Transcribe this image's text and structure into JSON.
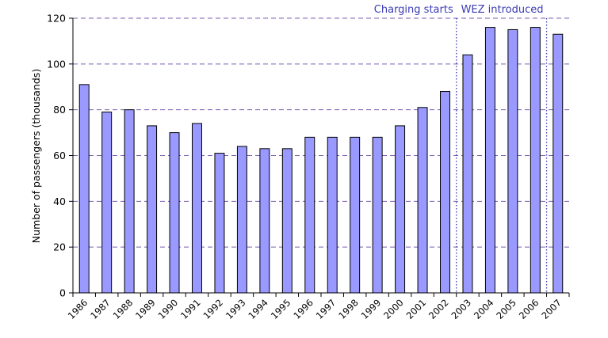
{
  "chart_data": {
    "type": "bar",
    "title": "",
    "xlabel": "",
    "ylabel": "Number of passengers (thousands)",
    "ylim": [
      0,
      120
    ],
    "yticks": [
      0,
      20,
      40,
      60,
      80,
      100,
      120
    ],
    "grid": true,
    "categories": [
      "1986",
      "1987",
      "1988",
      "1989",
      "1990",
      "1991",
      "1992",
      "1993",
      "1994",
      "1995",
      "1996",
      "1997",
      "1998",
      "1999",
      "2000",
      "2001",
      "2002",
      "2003",
      "2004",
      "2005",
      "2006",
      "2007"
    ],
    "values": [
      91,
      79,
      80,
      73,
      70,
      74,
      61,
      64,
      63,
      63,
      68,
      68,
      68,
      68,
      73,
      81,
      88,
      104,
      116,
      115,
      116,
      113
    ],
    "annotations": [
      {
        "label": "Charging starts",
        "between": [
          "2002",
          "2003"
        ]
      },
      {
        "label": "WEZ introduced",
        "between": [
          "2006",
          "2007"
        ]
      }
    ],
    "colors": {
      "bar_fill": "#9999ff",
      "bar_stroke": "#000000",
      "grid": "#7b5fb3",
      "annotation": "#3b3bb5",
      "axis": "#000000"
    }
  }
}
